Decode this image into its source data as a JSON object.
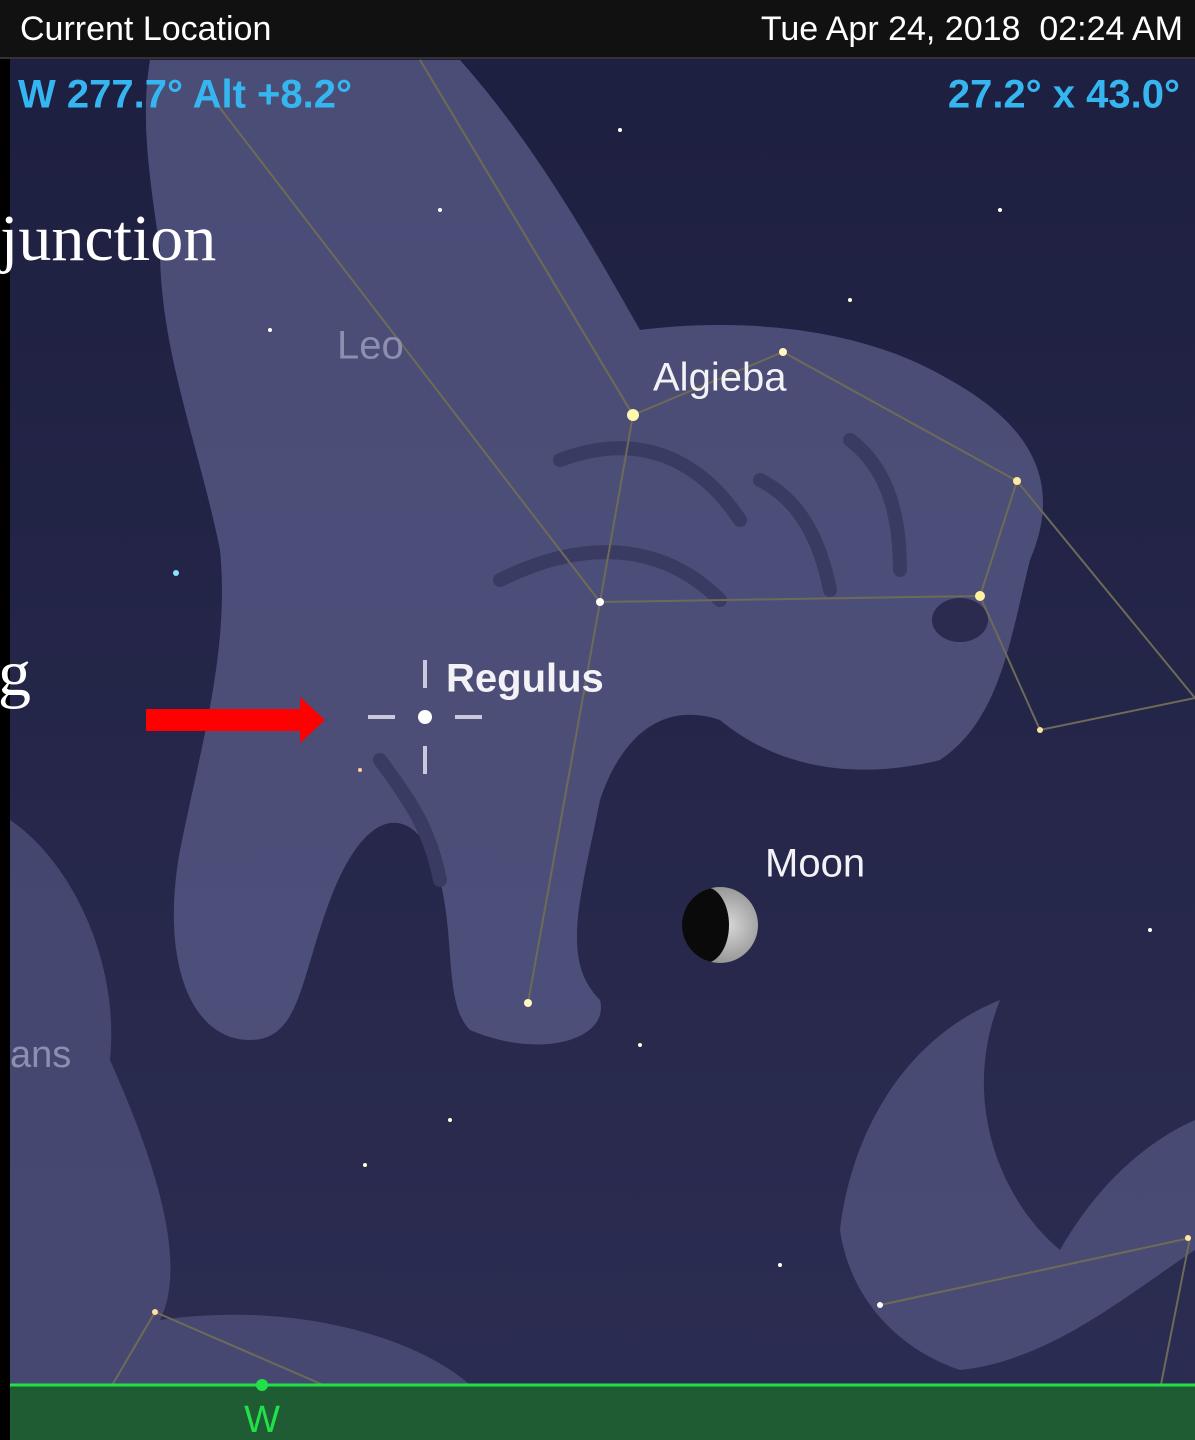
{
  "status_bar": {
    "location": "Current Location",
    "datetime": "Tue Apr 24, 2018  02:24 AM"
  },
  "hud": {
    "coordinates": "W 277.7° Alt +8.2°",
    "field_of_view": "27.2° x 43.0°"
  },
  "overlay_text": [
    "junction",
    "g"
  ],
  "sky_labels": {
    "constellation": "Leo",
    "star_1": "Algieba",
    "star_2": "Regulus",
    "moon": "Moon",
    "partial_constellation": "ans",
    "horizon_direction": "W"
  }
}
